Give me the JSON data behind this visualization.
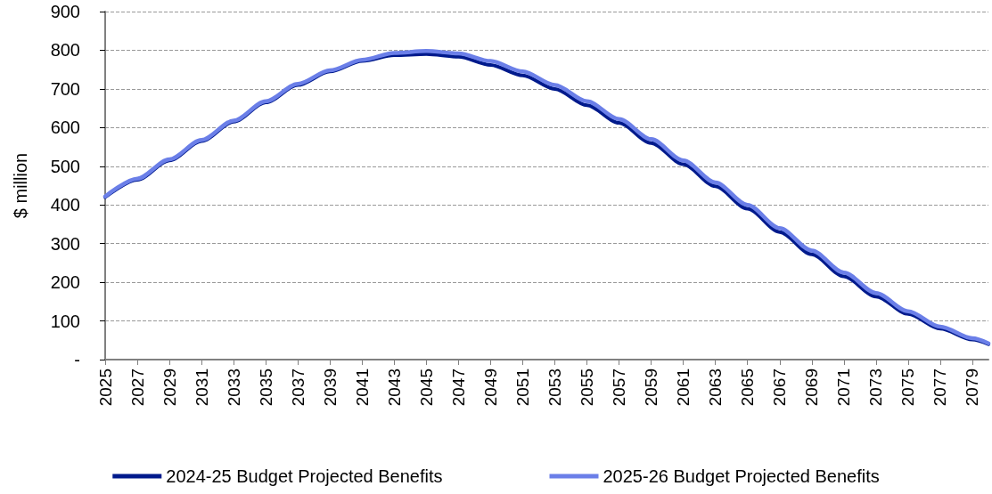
{
  "chart_data": {
    "type": "line",
    "ylabel": "$ million",
    "x": [
      2025,
      2027,
      2029,
      2031,
      2033,
      2035,
      2037,
      2039,
      2041,
      2043,
      2045,
      2047,
      2049,
      2051,
      2053,
      2055,
      2057,
      2059,
      2061,
      2063,
      2065,
      2067,
      2069,
      2071,
      2073,
      2075,
      2077,
      2079,
      2080
    ],
    "series": [
      {
        "name": "2024-25 Budget Projected Benefits",
        "color": "#001a8c",
        "values": [
          420,
          465,
          515,
          565,
          615,
          665,
          710,
          745,
          772,
          787,
          790,
          783,
          762,
          735,
          700,
          658,
          612,
          560,
          505,
          448,
          390,
          330,
          272,
          215,
          163,
          118,
          80,
          52,
          40
        ]
      },
      {
        "name": "2025-26 Budget Projected Benefits",
        "color": "#6b7fe8",
        "values": [
          422,
          468,
          518,
          568,
          618,
          668,
          713,
          748,
          775,
          793,
          798,
          792,
          772,
          745,
          710,
          668,
          622,
          570,
          515,
          458,
          400,
          340,
          282,
          225,
          172,
          125,
          85,
          55,
          42
        ]
      }
    ],
    "xlim": [
      2025,
      2080
    ],
    "xticks": [
      2025,
      2027,
      2029,
      2031,
      2033,
      2035,
      2037,
      2039,
      2041,
      2043,
      2045,
      2047,
      2049,
      2051,
      2053,
      2055,
      2057,
      2059,
      2061,
      2063,
      2065,
      2067,
      2069,
      2071,
      2073,
      2075,
      2077,
      2079
    ],
    "ylim": [
      0,
      900
    ],
    "yticks": [
      {
        "value": 0,
        "label": "-"
      },
      100,
      200,
      300,
      400,
      500,
      600,
      700,
      800,
      900
    ],
    "grid": "y",
    "legend": "bottom",
    "marker": "none",
    "line_style": "solid"
  }
}
